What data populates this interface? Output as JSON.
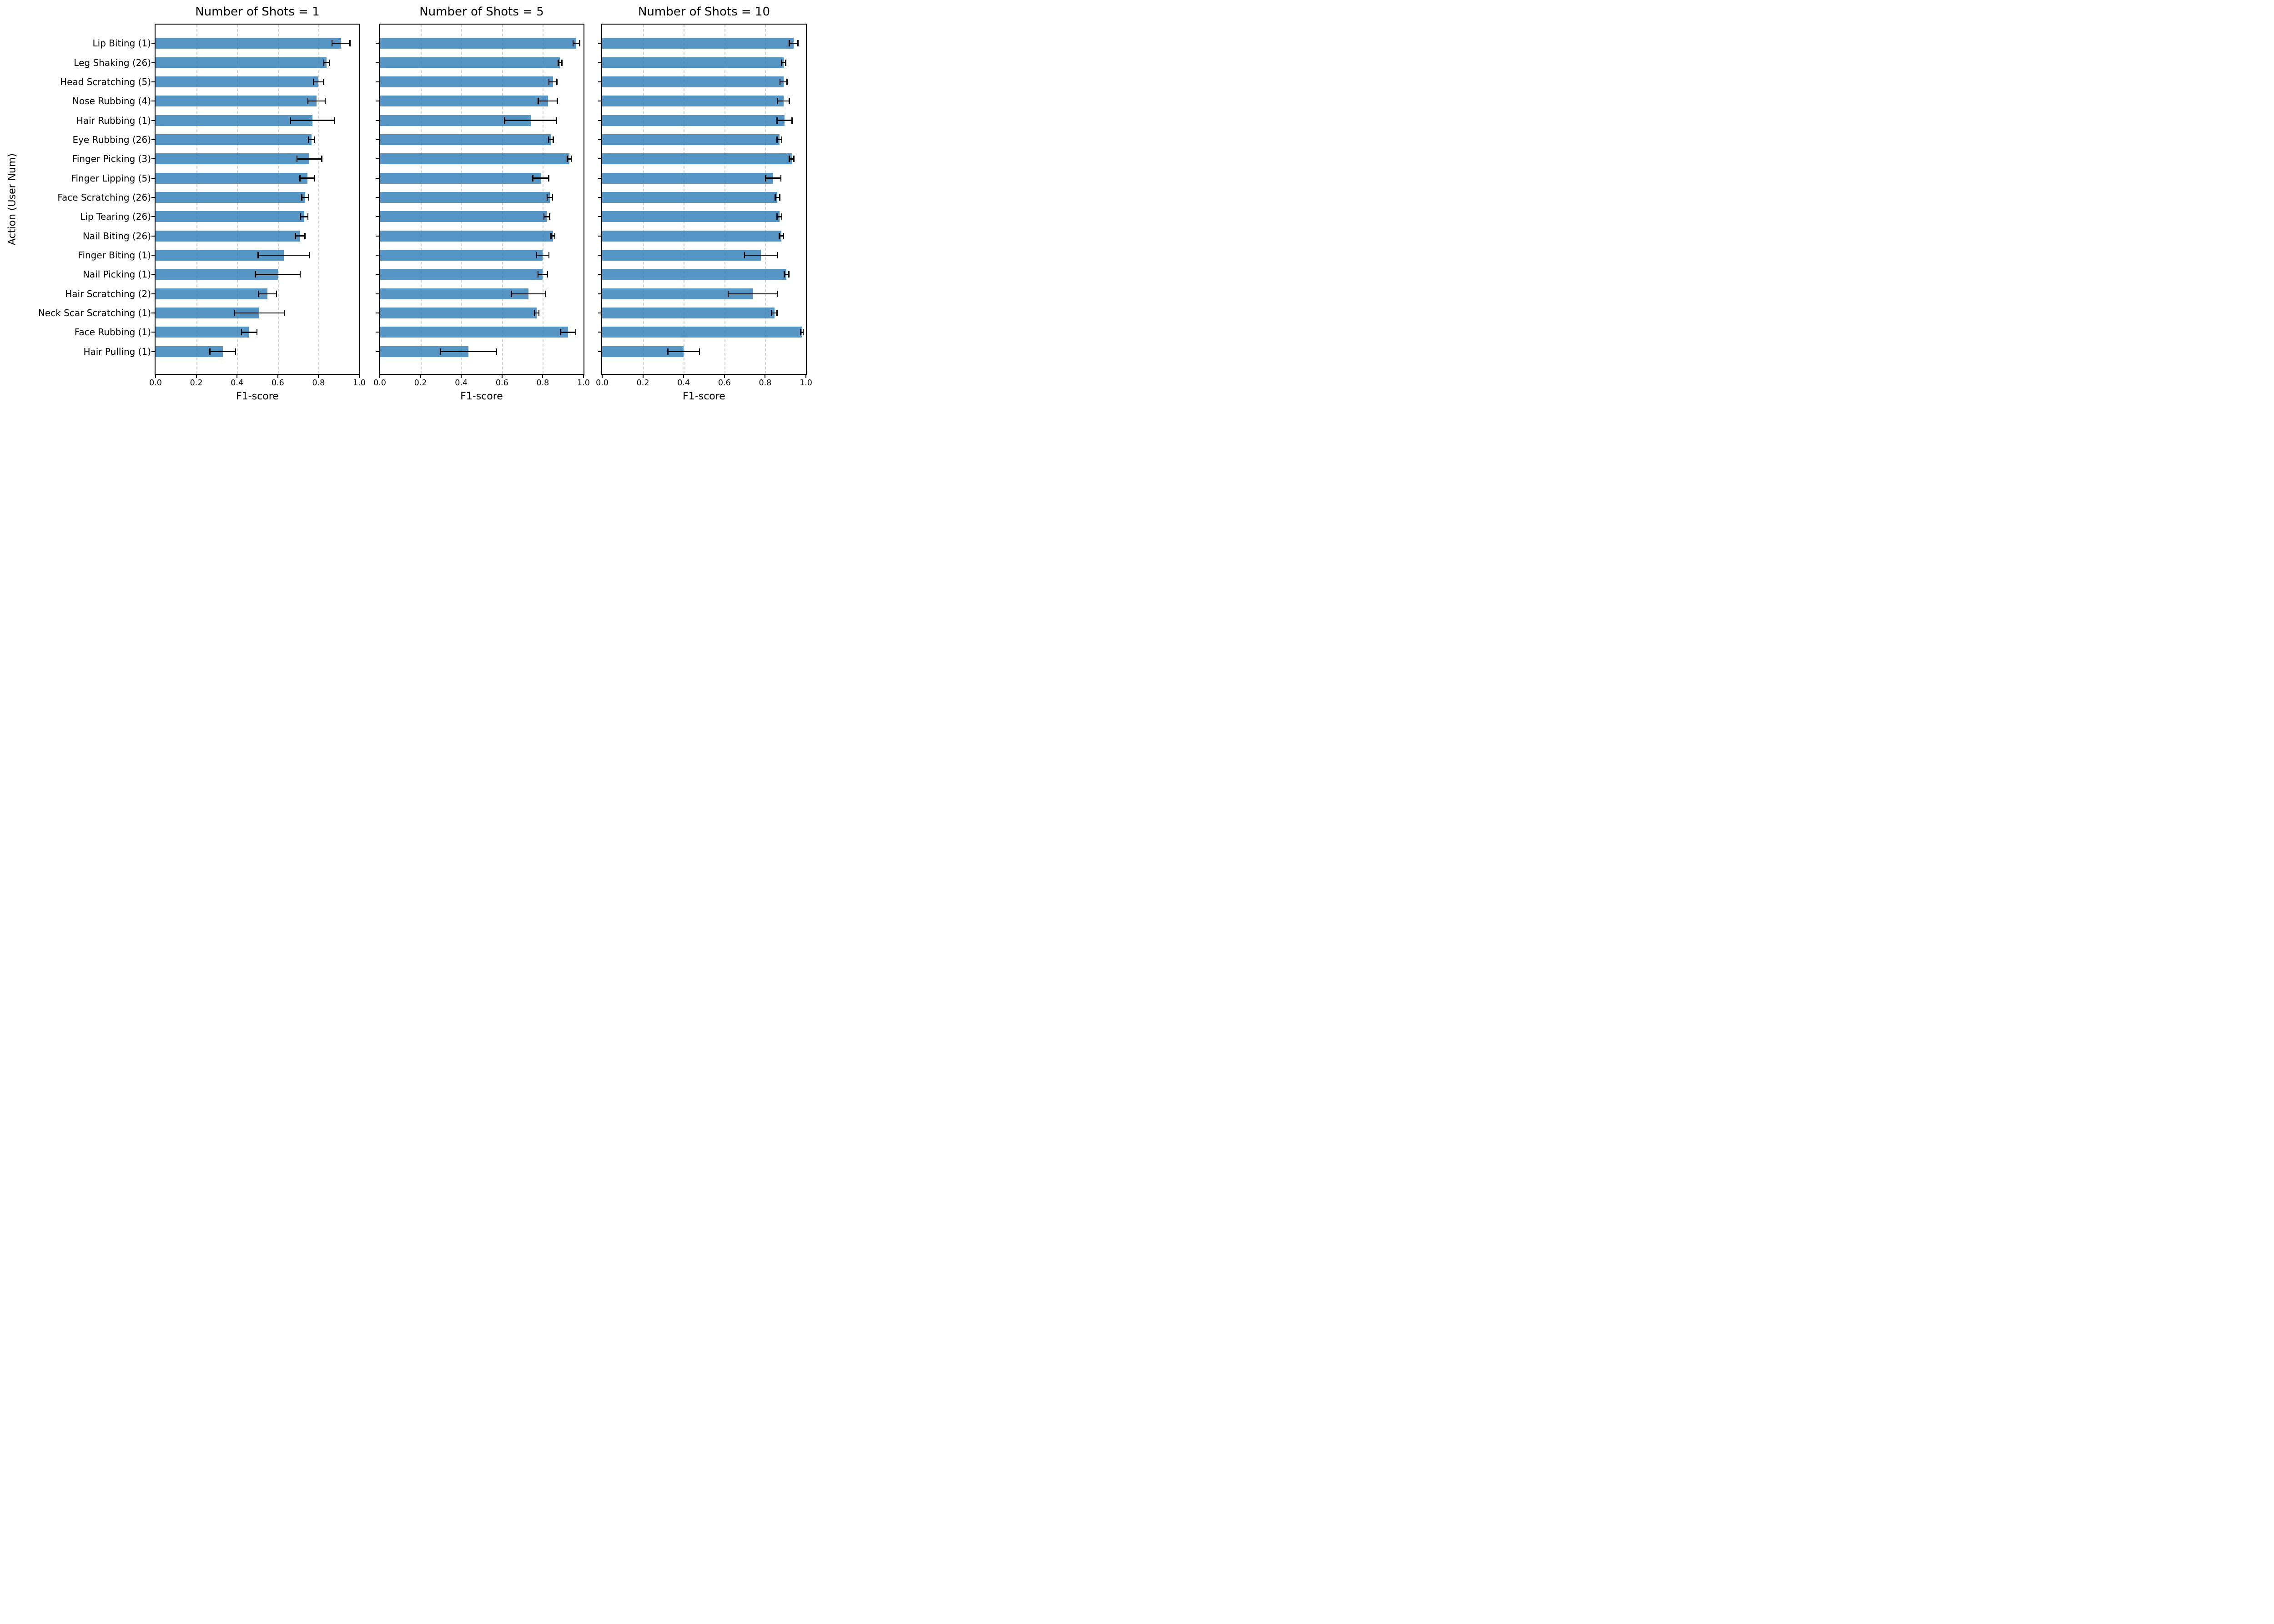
{
  "chart_data": {
    "type": "bar",
    "orientation": "horizontal",
    "title": "",
    "xlabel": "F1-score",
    "ylabel": "Action (User Num)",
    "xlim": [
      0.0,
      1.0
    ],
    "xticks": [
      0.0,
      0.2,
      0.4,
      0.6,
      0.8,
      1.0
    ],
    "xtick_labels": [
      "0.0",
      "0.2",
      "0.4",
      "0.6",
      "0.8",
      "1.0"
    ],
    "grid": "vertical dashed gridlines at 0.2, 0.4, 0.6, 0.8",
    "legend": "none",
    "bar_color": "#5899C8",
    "error_bar_color": "#000000",
    "categories": [
      "Lip Biting (1)",
      "Leg Shaking (26)",
      "Head Scratching (5)",
      "Nose Rubbing (4)",
      "Hair Rubbing (1)",
      "Eye Rubbing (26)",
      "Finger Picking (3)",
      "Finger Lipping (5)",
      "Face Scratching (26)",
      "Lip Tearing (26)",
      "Nail Biting (26)",
      "Finger Biting (1)",
      "Nail Picking (1)",
      "Hair Scratching (2)",
      "Neck Scar Scratching (1)",
      "Face Rubbing (1)",
      "Hair Pulling (1)"
    ],
    "panels": [
      {
        "title": "Number of Shots = 1",
        "values": [
          0.91,
          0.84,
          0.8,
          0.79,
          0.77,
          0.765,
          0.755,
          0.745,
          0.735,
          0.73,
          0.71,
          0.63,
          0.6,
          0.55,
          0.51,
          0.46,
          0.33
        ],
        "errors": [
          0.047,
          0.017,
          0.028,
          0.045,
          0.11,
          0.018,
          0.064,
          0.039,
          0.02,
          0.021,
          0.026,
          0.13,
          0.113,
          0.047,
          0.124,
          0.041,
          0.066
        ]
      },
      {
        "title": "Number of Shots = 5",
        "values": [
          0.965,
          0.885,
          0.85,
          0.825,
          0.74,
          0.84,
          0.93,
          0.79,
          0.835,
          0.82,
          0.85,
          0.8,
          0.8,
          0.73,
          0.77,
          0.925,
          0.435
        ],
        "errors": [
          0.019,
          0.012,
          0.022,
          0.05,
          0.13,
          0.014,
          0.012,
          0.042,
          0.016,
          0.017,
          0.012,
          0.033,
          0.026,
          0.087,
          0.014,
          0.04,
          0.14
        ]
      },
      {
        "title": "Number of Shots = 10",
        "values": [
          0.94,
          0.89,
          0.89,
          0.89,
          0.895,
          0.87,
          0.93,
          0.84,
          0.86,
          0.87,
          0.88,
          0.78,
          0.905,
          0.74,
          0.845,
          0.98,
          0.4
        ],
        "errors": [
          0.024,
          0.013,
          0.02,
          0.031,
          0.04,
          0.014,
          0.014,
          0.04,
          0.014,
          0.015,
          0.013,
          0.084,
          0.014,
          0.124,
          0.016,
          0.009,
          0.08
        ]
      }
    ]
  }
}
